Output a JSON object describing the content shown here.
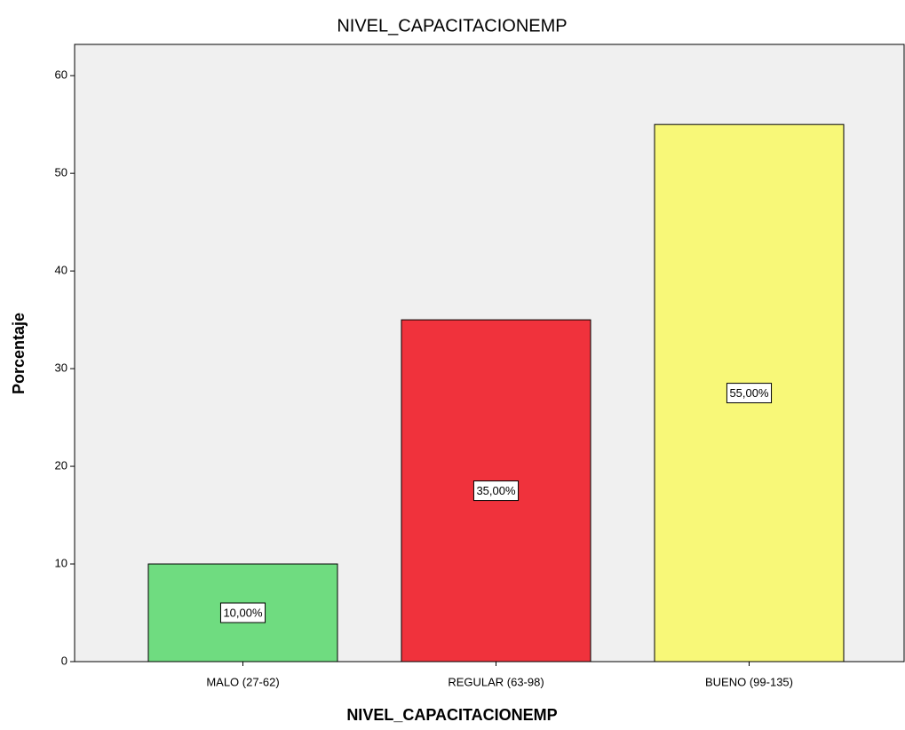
{
  "chart_data": {
    "type": "bar",
    "title": "NIVEL_CAPACITACIONEMP",
    "x_label": "NIVEL_CAPACITACIONEMP",
    "y_label": "Porcentaje",
    "categories": [
      "MALO (27-62)",
      "REGULAR (63-98)",
      "BUENO (99-135)"
    ],
    "values": [
      10,
      35,
      55
    ],
    "value_labels": [
      "10,00%",
      "35,00%",
      "55,00%"
    ],
    "colors": [
      "#6fdc80",
      "#f0323c",
      "#f8f878"
    ],
    "ylim": [
      0,
      63.2
    ],
    "yticks": [
      0,
      10,
      20,
      30,
      40,
      50,
      60
    ],
    "grid": false
  }
}
